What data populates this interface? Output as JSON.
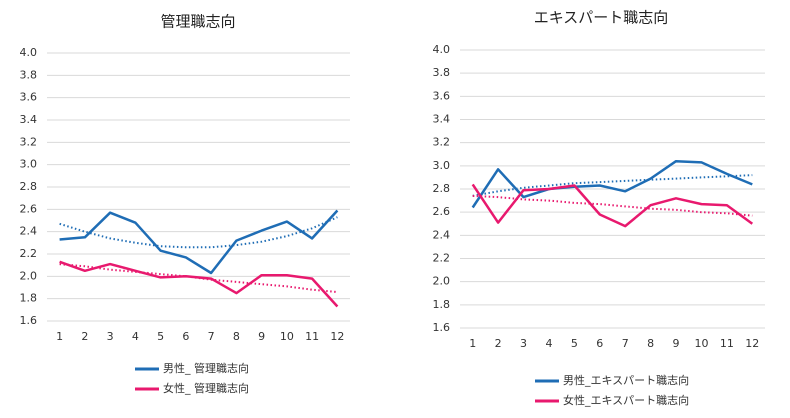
{
  "chart_data": [
    {
      "type": "line",
      "title": "管理職志向",
      "categories": [
        "1",
        "2",
        "3",
        "4",
        "5",
        "6",
        "7",
        "8",
        "9",
        "10",
        "11",
        "12"
      ],
      "ylim": [
        1.6,
        4.0
      ],
      "yticks": [
        {
          "value": 1.6,
          "label": "1.6"
        },
        {
          "value": 1.8,
          "label": "1.8"
        },
        {
          "value": 2.0,
          "label": "2.0"
        },
        {
          "value": 2.2,
          "label": "2.2"
        },
        {
          "value": 2.4,
          "label": "2.4"
        },
        {
          "value": 2.6,
          "label": "2.6"
        },
        {
          "value": 2.8,
          "label": "2.8"
        },
        {
          "value": 3.0,
          "label": "3.0"
        },
        {
          "value": 3.2,
          "label": "3.2"
        },
        {
          "value": 3.4,
          "label": "3.4"
        },
        {
          "value": 3.6,
          "label": "3.6"
        },
        {
          "value": 3.8,
          "label": "3.8"
        },
        {
          "value": 4.0,
          "label": "4.0"
        }
      ],
      "grid": true,
      "series": [
        {
          "name": "男性_ 管理職志向",
          "color": "#1f6db5",
          "values": [
            2.33,
            2.35,
            2.57,
            2.48,
            2.23,
            2.17,
            2.03,
            2.32,
            2.41,
            2.49,
            2.34,
            2.59
          ],
          "trend": [
            2.47,
            2.4,
            2.34,
            2.3,
            2.27,
            2.26,
            2.26,
            2.28,
            2.31,
            2.36,
            2.43,
            2.53
          ]
        },
        {
          "name": "女性_ 管理職志向",
          "color": "#e8196e",
          "values": [
            2.13,
            2.05,
            2.11,
            2.05,
            1.99,
            2.0,
            1.98,
            1.85,
            2.01,
            2.01,
            1.98,
            1.73
          ],
          "trend": [
            2.11,
            2.09,
            2.06,
            2.04,
            2.02,
            2.0,
            1.97,
            1.95,
            1.93,
            1.91,
            1.88,
            1.86
          ]
        }
      ]
    },
    {
      "type": "line",
      "title": "エキスパート職志向",
      "categories": [
        "1",
        "2",
        "3",
        "4",
        "5",
        "6",
        "7",
        "8",
        "9",
        "10",
        "11",
        "12"
      ],
      "ylim": [
        1.6,
        4.0
      ],
      "yticks": [
        {
          "value": 1.6,
          "label": "1.6"
        },
        {
          "value": 1.8,
          "label": "1.8"
        },
        {
          "value": 2.0,
          "label": "2.0"
        },
        {
          "value": 2.2,
          "label": "2.2"
        },
        {
          "value": 2.4,
          "label": "2.4"
        },
        {
          "value": 2.6,
          "label": "2.6"
        },
        {
          "value": 2.8,
          "label": "2.8"
        },
        {
          "value": 3.0,
          "label": "3.0"
        },
        {
          "value": 3.2,
          "label": "3.2"
        },
        {
          "value": 3.4,
          "label": "3.4"
        },
        {
          "value": 3.6,
          "label": "3.6"
        },
        {
          "value": 3.8,
          "label": "3.8"
        },
        {
          "value": 4.0,
          "label": "4.0"
        }
      ],
      "grid": true,
      "series": [
        {
          "name": "男性_エキスパート職志向",
          "color": "#1f6db5",
          "values": [
            2.64,
            2.97,
            2.73,
            2.8,
            2.82,
            2.83,
            2.78,
            2.89,
            3.04,
            3.03,
            2.93,
            2.84
          ],
          "trend": [
            2.74,
            2.78,
            2.81,
            2.83,
            2.85,
            2.86,
            2.87,
            2.88,
            2.89,
            2.9,
            2.91,
            2.92
          ]
        },
        {
          "name": "女性_エキスパート職志向",
          "color": "#e8196e",
          "values": [
            2.84,
            2.51,
            2.79,
            2.8,
            2.83,
            2.58,
            2.48,
            2.66,
            2.72,
            2.67,
            2.66,
            2.5
          ],
          "trend": [
            2.74,
            2.73,
            2.71,
            2.7,
            2.68,
            2.67,
            2.65,
            2.63,
            2.62,
            2.6,
            2.59,
            2.57
          ]
        }
      ]
    }
  ]
}
